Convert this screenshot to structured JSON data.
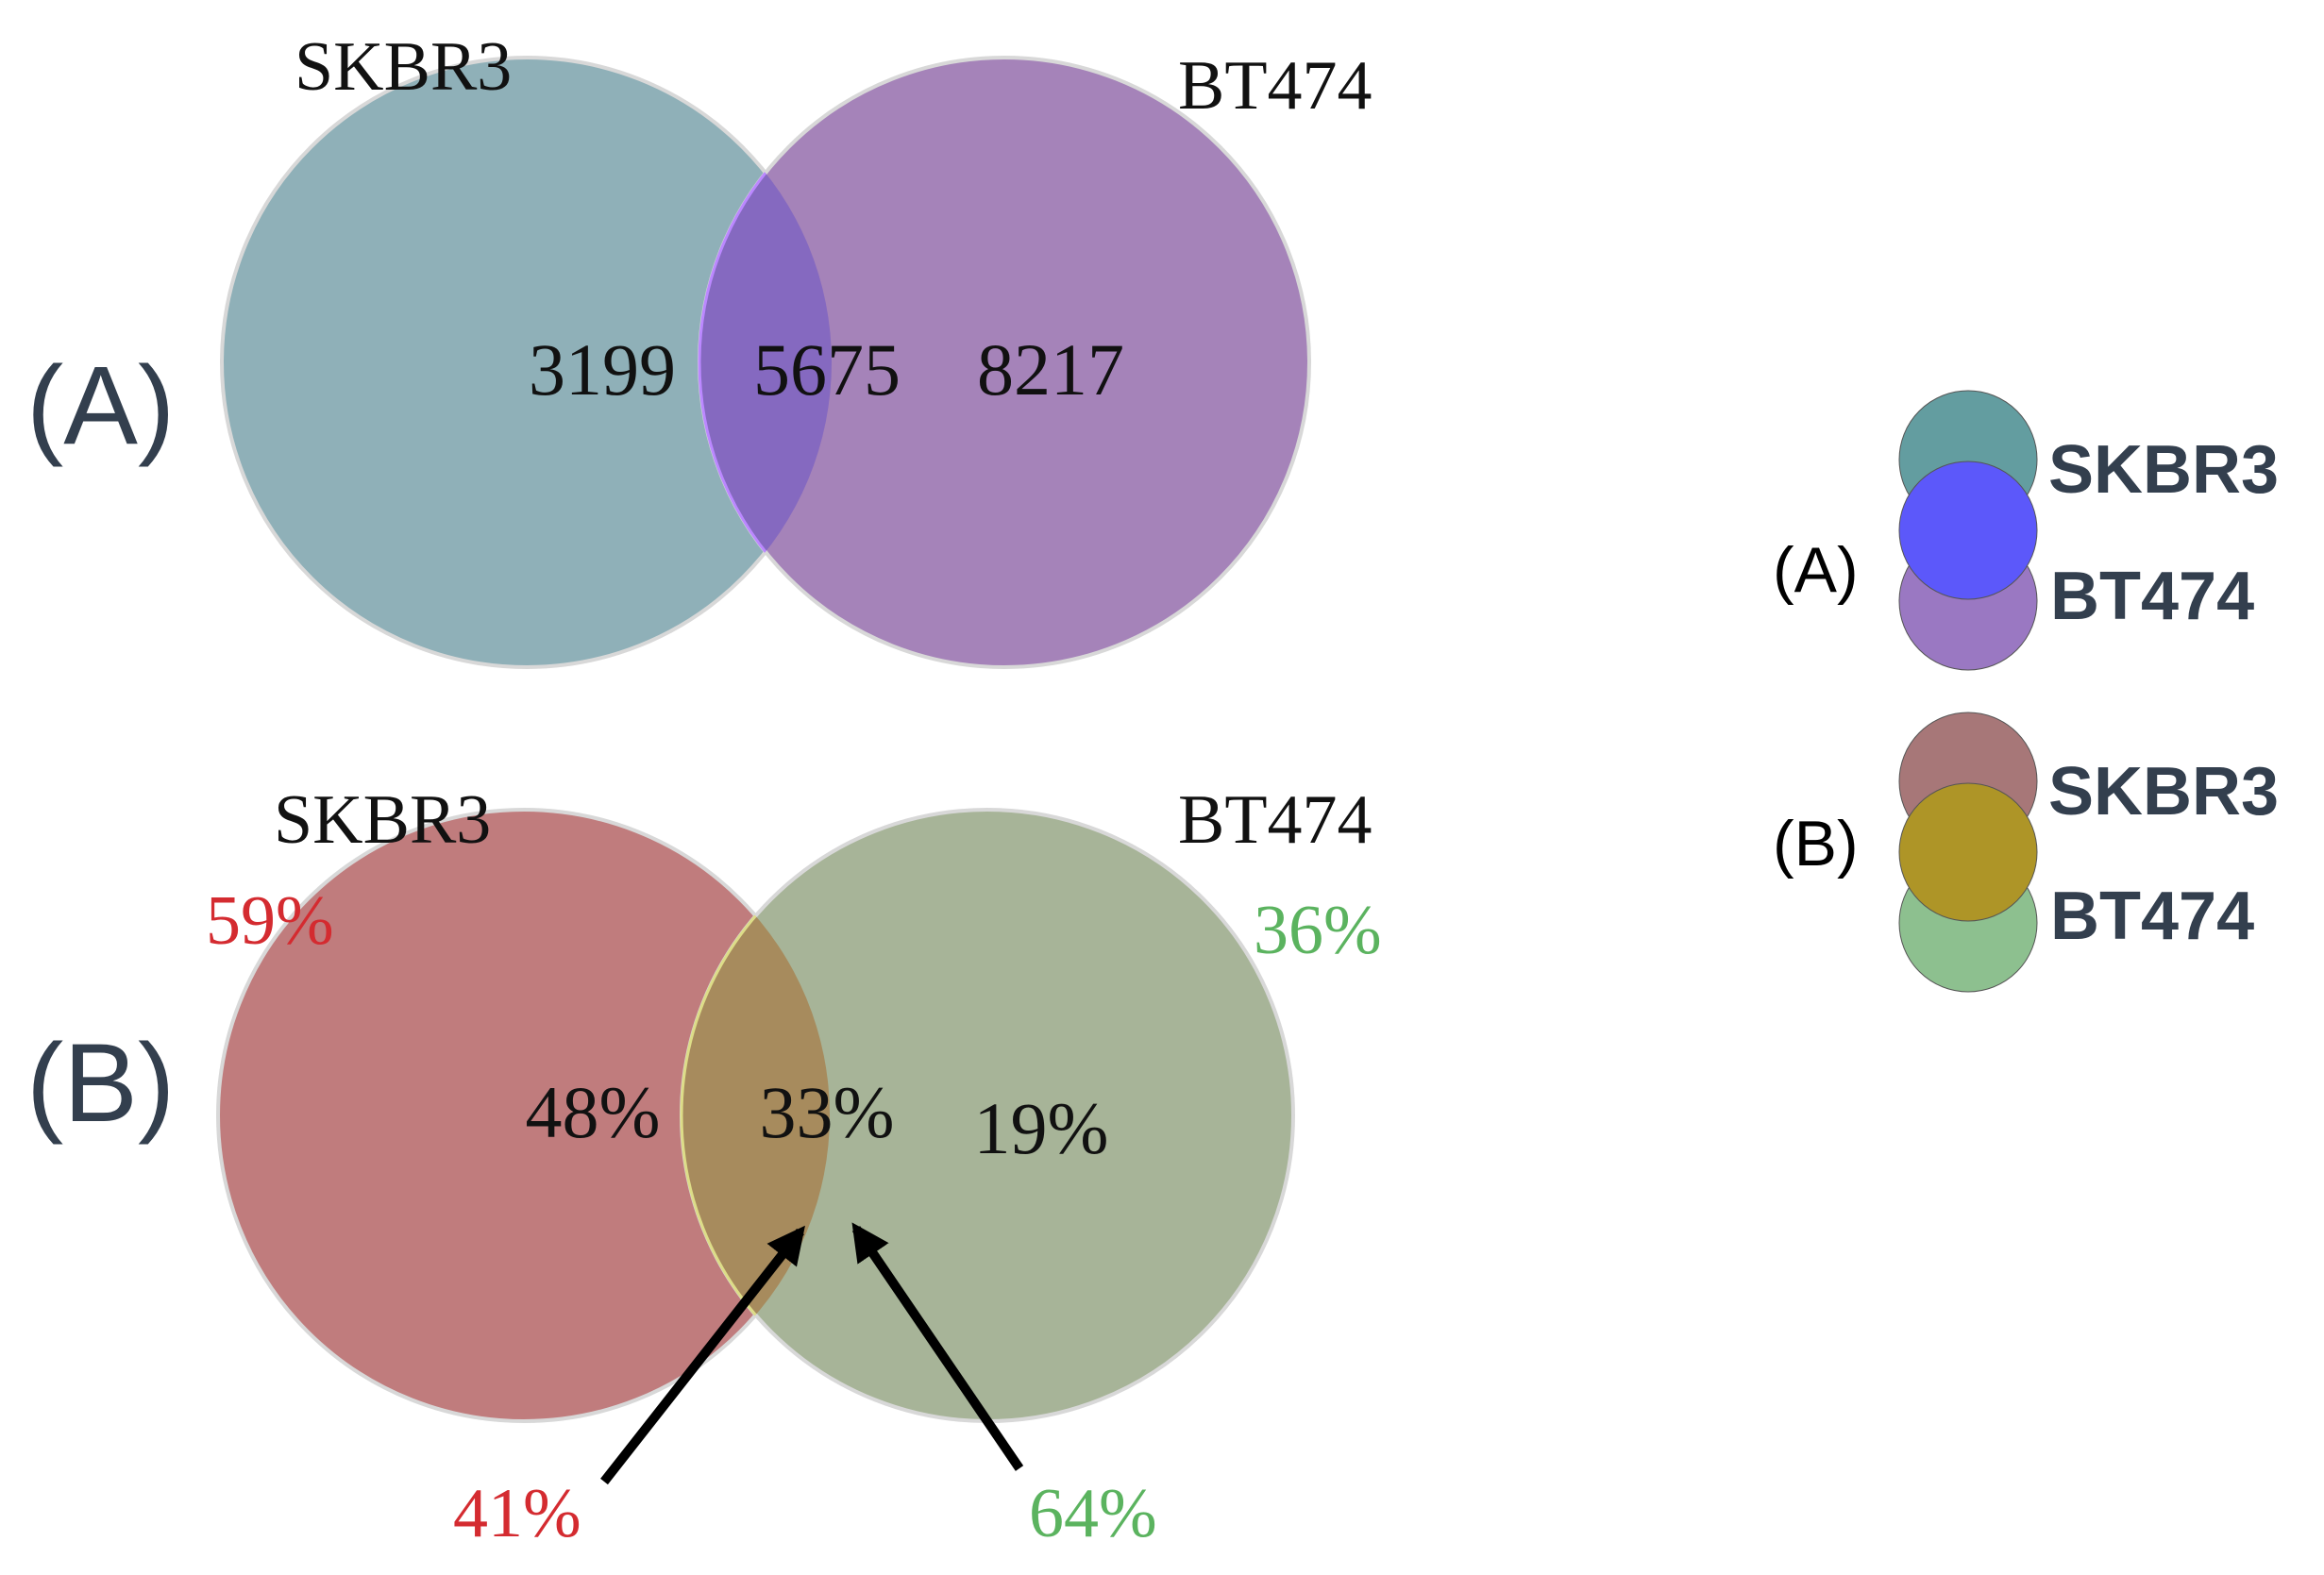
{
  "panels": {
    "a": {
      "label": "(A)",
      "left_set": "SKBR3",
      "right_set": "BT474",
      "left_only": "3199",
      "overlap": "5675",
      "right_only": "8217",
      "left_color": "#8fb0b8",
      "right_color": "#a583b9",
      "overlap_color": "#8569c0"
    },
    "b": {
      "label": "(B)",
      "left_set": "SKBR3",
      "right_set": "BT474",
      "left_total": "59%",
      "right_total": "36%",
      "left_only": "48%",
      "overlap": "33%",
      "right_only": "19%",
      "arrow_left": "41%",
      "arrow_right": "64%",
      "left_color": "#c07c7d",
      "right_color": "#a7b498",
      "overlap_color": "#a78b5d",
      "red_text": "#d42b30",
      "green_text": "#5bb35f"
    }
  },
  "legend": {
    "a": {
      "label": "(A)",
      "items": [
        {
          "name": "SKBR3",
          "color": "#639da0"
        },
        {
          "name": "BT474",
          "color": "#9a78c2"
        }
      ],
      "overlap_color": "#5c58fa"
    },
    "b": {
      "label": "(B)",
      "items": [
        {
          "name": "SKBR3",
          "color": "#a77778"
        },
        {
          "name": "BT474",
          "color": "#8dc08f"
        }
      ],
      "overlap_color": "#ae9527"
    },
    "text_color": "#333f4e"
  }
}
